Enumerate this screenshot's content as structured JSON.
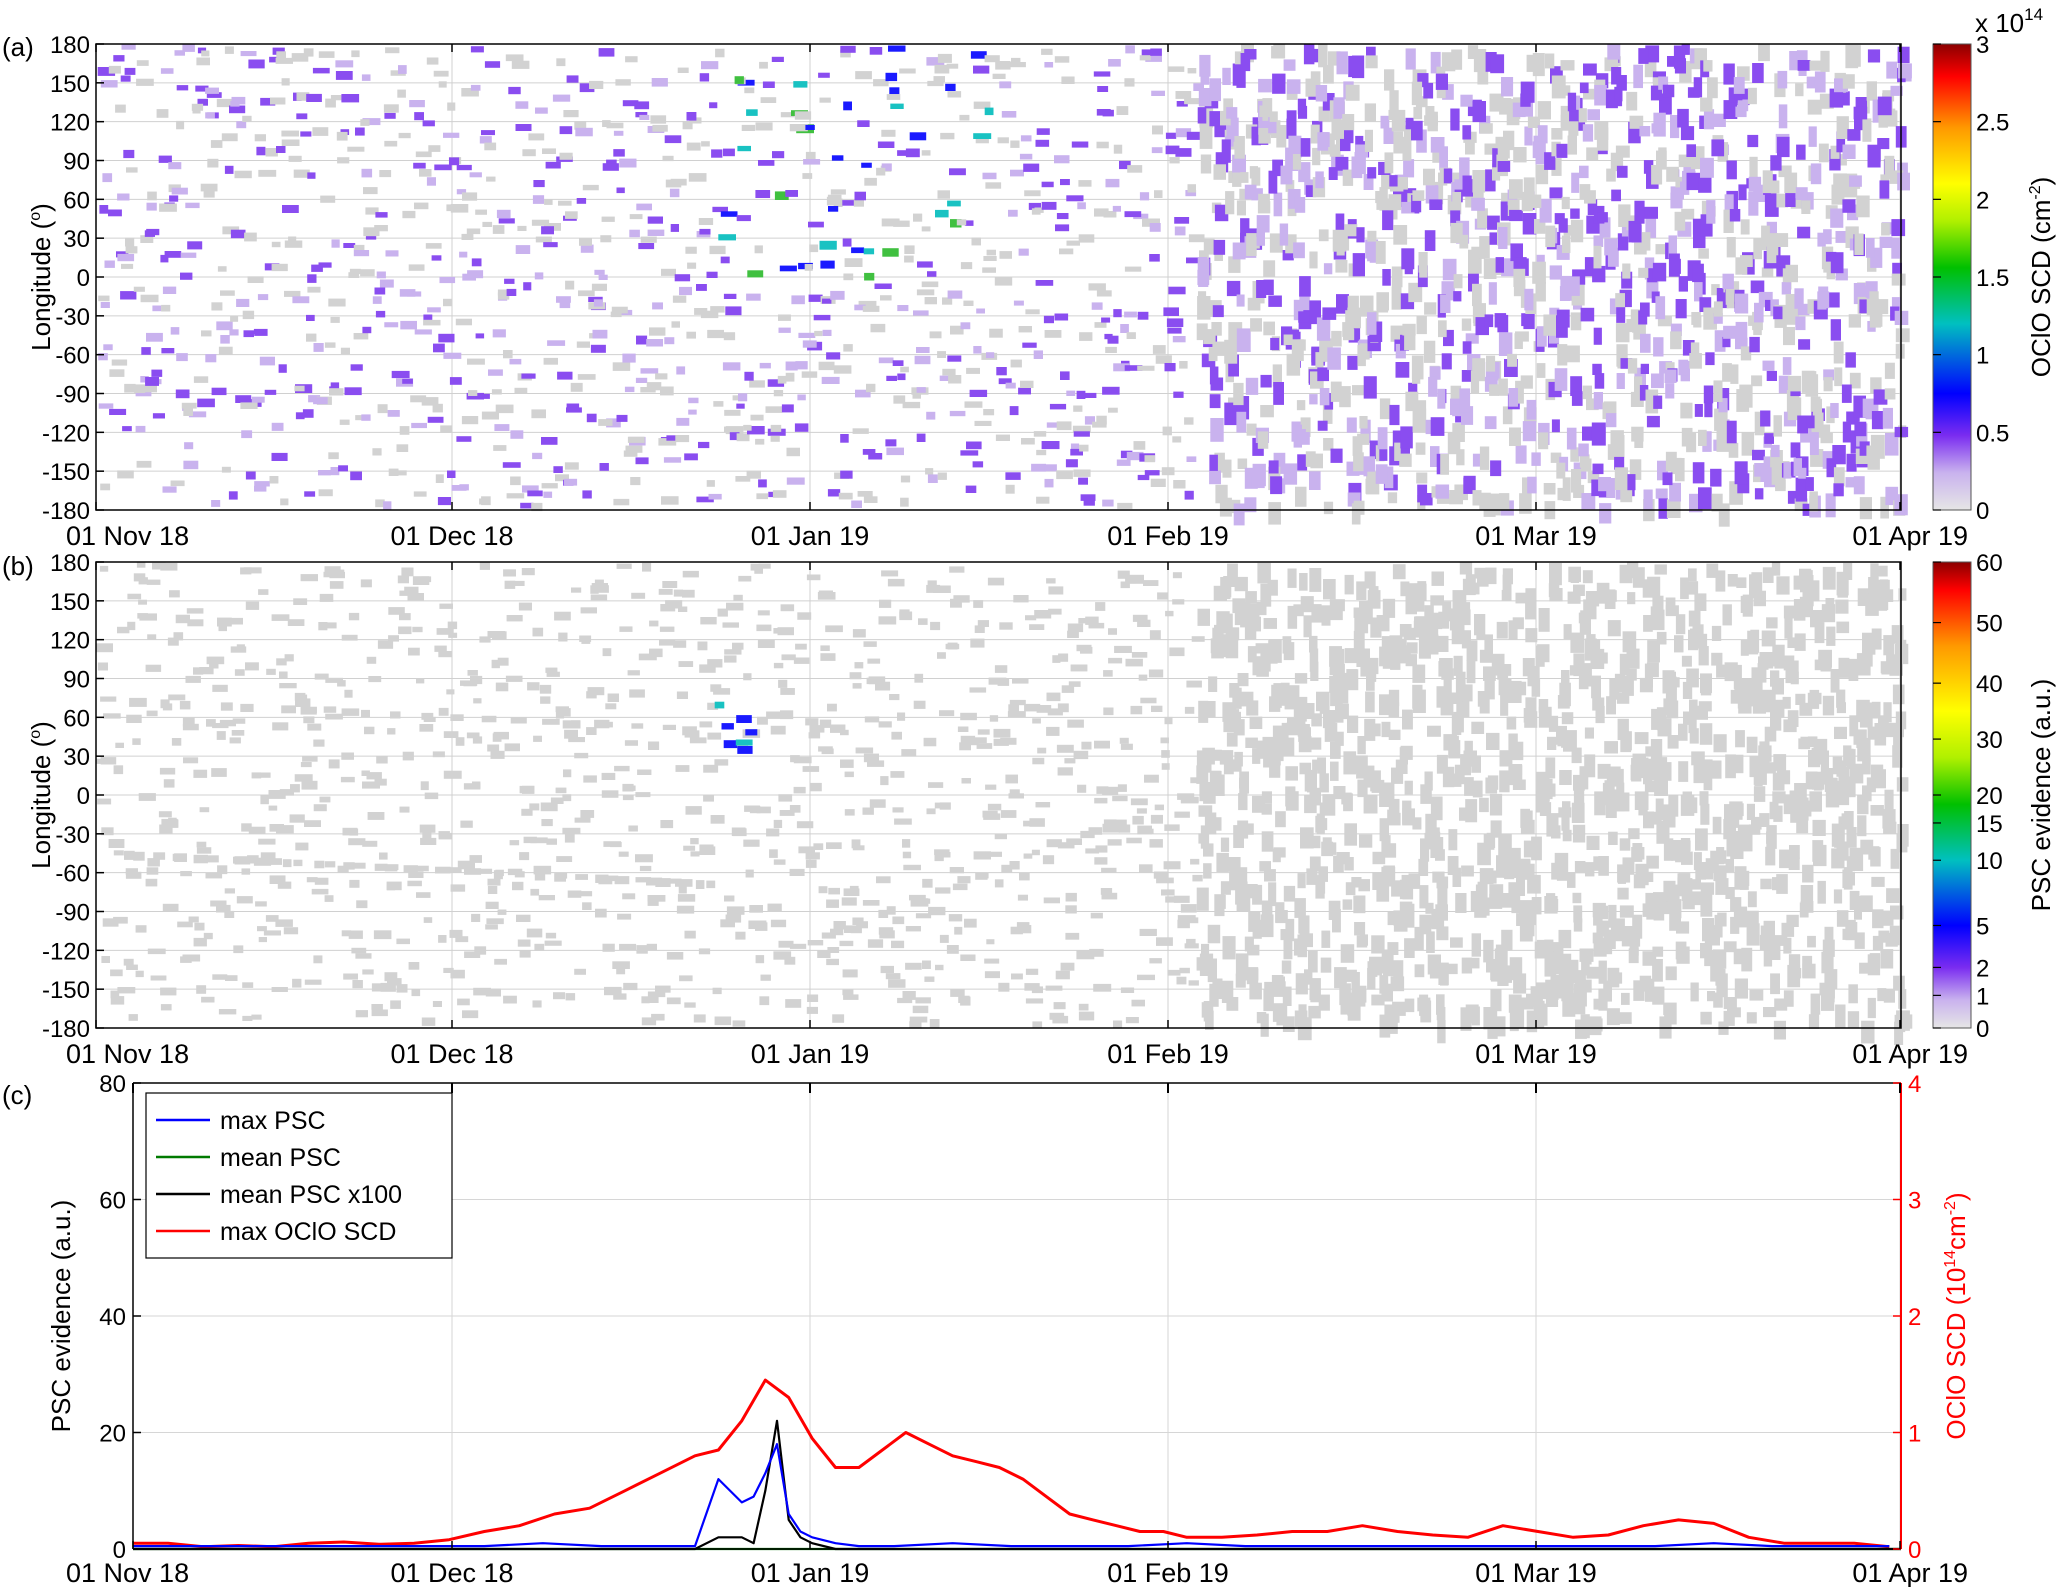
{
  "chart_data": [
    {
      "panel_label": "(a)",
      "type": "heatmap",
      "x_ticks": [
        "01 Nov 18",
        "01 Dec 18",
        "01 Jan 19",
        "01 Feb 19",
        "01 Mar 19",
        "01 Apr 19"
      ],
      "ylabel": "Longitude (o)",
      "ylabel_main": "Longitude (",
      "ylabel_sup": "o",
      "ylabel_close": ")",
      "y_ticks": [
        "180",
        "150",
        "120",
        "90",
        "60",
        "30",
        "0",
        "-30",
        "-60",
        "-90",
        "-120",
        "-150",
        "-180"
      ],
      "ylim": [
        -180,
        180
      ],
      "grid": true,
      "colorbar": {
        "label_main": "OClO SCD (cm",
        "label_sup": "-2",
        "label_close": ")",
        "exponent": "x 10",
        "exponent_power": "14",
        "ticks": [
          "0",
          "0.5",
          "1",
          "1.5",
          "2",
          "2.5",
          "3"
        ],
        "range": [
          0,
          3
        ],
        "colors": [
          "#dcdcdc",
          "#b89ae8",
          "#7a2cf0",
          "#0000ff",
          "#00c8c8",
          "#00c800",
          "#d4f000",
          "#ffff00",
          "#ff9900",
          "#ff0000",
          "#8b0000"
        ]
      },
      "values_description_colors": {
        "grey": "#d2d2d2",
        "light_purple": "#c9b2ee",
        "purple": "#8a4df0",
        "blue": "#1a1aff",
        "cyan": "#19c2c2",
        "green": "#40c040",
        "lime": "#a0e030"
      }
    },
    {
      "panel_label": "(b)",
      "type": "heatmap",
      "x_ticks": [
        "01 Nov 18",
        "01 Dec 18",
        "01 Jan 19",
        "01 Feb 19",
        "01 Mar 19",
        "01 Apr 19"
      ],
      "ylabel": "Longitude (o)",
      "ylabel_main": "Longitude (",
      "ylabel_sup": "o",
      "ylabel_close": ")",
      "y_ticks": [
        "180",
        "150",
        "120",
        "90",
        "60",
        "30",
        "0",
        "-30",
        "-60",
        "-90",
        "-120",
        "-150",
        "-180"
      ],
      "ylim": [
        -180,
        180
      ],
      "grid": true,
      "colorbar": {
        "label": "PSC evidence (a.u.)",
        "ticks": [
          "0",
          "1",
          "2",
          "5",
          "10",
          "15",
          "20",
          "30",
          "40",
          "50",
          "60"
        ],
        "range": [
          0,
          60
        ]
      }
    },
    {
      "panel_label": "(c)",
      "type": "line",
      "x_ticks": [
        "01 Nov 18",
        "01 Dec 18",
        "01 Jan 19",
        "01 Feb 19",
        "01 Mar 19",
        "01 Apr 19"
      ],
      "xlim_days": [
        0,
        151
      ],
      "ylabel": "PSC evidence (a.u.)",
      "ylim": [
        0,
        80
      ],
      "y_ticks": [
        "0",
        "20",
        "40",
        "60",
        "80"
      ],
      "y2label_main": "OClO SCD (10",
      "y2label_sup1": "14",
      "y2label_mid": "cm",
      "y2label_sup2": "-2",
      "y2label_close": ")",
      "y2lim": [
        0,
        4
      ],
      "y2_ticks": [
        "0",
        "1",
        "2",
        "3",
        "4"
      ],
      "y2_color": "#ff0000",
      "grid": true,
      "legend_position": "top-left",
      "series": [
        {
          "name": "max PSC",
          "axis": "left",
          "color": "#0000ff",
          "x": [
            0,
            5,
            10,
            15,
            20,
            25,
            30,
            35,
            40,
            45,
            48,
            50,
            52,
            53,
            54,
            55,
            56,
            57,
            58,
            60,
            62,
            65,
            70,
            75,
            80,
            85,
            90,
            95,
            100,
            105,
            110,
            115,
            120,
            125,
            130,
            135,
            140,
            145,
            150
          ],
          "y": [
            0.5,
            0.5,
            0.5,
            0.5,
            0.5,
            0.5,
            0.5,
            1,
            0.5,
            0.5,
            0.5,
            12,
            8,
            9,
            13,
            18,
            6,
            3,
            2,
            1,
            0.5,
            0.5,
            1,
            0.5,
            0.5,
            0.5,
            1,
            0.5,
            0.5,
            0.5,
            0.5,
            0.5,
            0.5,
            0.5,
            0.5,
            1,
            0.5,
            0.5,
            0.5
          ]
        },
        {
          "name": "mean PSC",
          "axis": "left",
          "color": "#007a00",
          "x": [
            0,
            30,
            60,
            90,
            120,
            151
          ],
          "y": [
            0,
            0,
            0,
            0,
            0,
            0
          ]
        },
        {
          "name": "mean PSC x100",
          "axis": "left",
          "color": "#000000",
          "x": [
            0,
            48,
            50,
            52,
            53,
            54,
            55,
            56,
            57,
            58,
            60,
            62,
            151
          ],
          "y": [
            0,
            0,
            2,
            2,
            1,
            10,
            22,
            5,
            2,
            1,
            0,
            0,
            0
          ]
        },
        {
          "name": "max OClO SCD",
          "axis": "right",
          "color": "#ff0000",
          "x": [
            0,
            3,
            6,
            9,
            12,
            15,
            18,
            21,
            24,
            27,
            30,
            33,
            36,
            39,
            42,
            45,
            48,
            50,
            52,
            54,
            56,
            58,
            60,
            62,
            64,
            66,
            68,
            70,
            72,
            74,
            76,
            78,
            80,
            82,
            84,
            86,
            88,
            90,
            93,
            96,
            99,
            102,
            105,
            108,
            111,
            114,
            117,
            120,
            123,
            126,
            129,
            132,
            135,
            138,
            141,
            144,
            147,
            150
          ],
          "y": [
            0.05,
            0.05,
            0.02,
            0.03,
            0.02,
            0.05,
            0.06,
            0.04,
            0.05,
            0.08,
            0.15,
            0.2,
            0.3,
            0.35,
            0.5,
            0.65,
            0.8,
            0.85,
            1.1,
            1.45,
            1.3,
            0.95,
            0.7,
            0.7,
            0.85,
            1.0,
            0.9,
            0.8,
            0.75,
            0.7,
            0.6,
            0.45,
            0.3,
            0.25,
            0.2,
            0.15,
            0.15,
            0.1,
            0.1,
            0.12,
            0.15,
            0.15,
            0.2,
            0.15,
            0.12,
            0.1,
            0.2,
            0.15,
            0.1,
            0.12,
            0.2,
            0.25,
            0.22,
            0.1,
            0.05,
            0.05,
            0.05,
            0.02
          ]
        }
      ]
    }
  ]
}
